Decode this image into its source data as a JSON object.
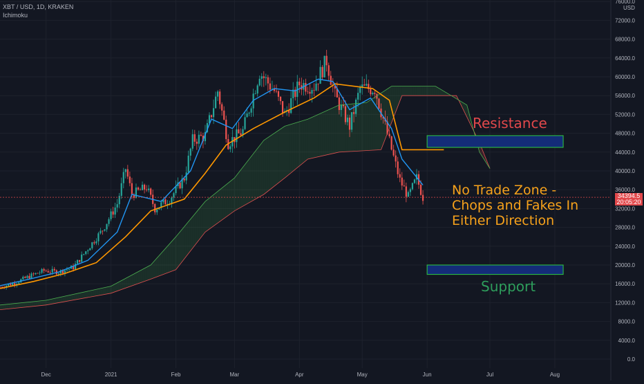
{
  "header": {
    "symbol_line": "XBT / USD, 1D, KRAKEN",
    "indicator": "Ichimoku"
  },
  "price_axis": {
    "currency": "USD",
    "ticks": [
      "76000.0",
      "72000.0",
      "68000.0",
      "64000.0",
      "60000.0",
      "56000.0",
      "52000.0",
      "48000.0",
      "44000.0",
      "40000.0",
      "36000.0",
      "32000.0",
      "28000.0",
      "24000.0",
      "20000.0",
      "16000.0",
      "12000.0",
      "8000.0",
      "4000.0",
      "0.0"
    ]
  },
  "current_price": {
    "price": "34394.5",
    "countdown": "20:05:20"
  },
  "time_axis": {
    "ticks": [
      "Dec",
      "2021",
      "Feb",
      "Mar",
      "Apr",
      "May",
      "Jun",
      "Jul",
      "Aug"
    ]
  },
  "annotations": {
    "resistance": "Resistance",
    "no_trade": "No Trade Zone -\nChops and Fakes In\nEither Direction",
    "support": "Support"
  },
  "colors": {
    "background": "#131722",
    "up": "#26a69a",
    "down": "#ef5350",
    "tenkan": "#2196f3",
    "kijun": "#ff9800",
    "span_a": "#4caf50",
    "span_b": "#e05050",
    "zone_fill": "#142c78",
    "zone_border": "#2ecc40"
  },
  "chart_data": {
    "type": "candlestick",
    "title": "XBT / USD, 1D, KRAKEN",
    "indicator": "Ichimoku",
    "y_range": [
      0,
      76000
    ],
    "x_range": [
      "2020-11-09",
      "2021-08-10"
    ],
    "x_ticks": [
      "Dec",
      "2021",
      "Feb",
      "Mar",
      "Apr",
      "May",
      "Jun",
      "Jul",
      "Aug"
    ],
    "tick_dates": [
      "2020-12-01",
      "2021-01-01",
      "2021-02-01",
      "2021-03-01",
      "2021-04-01",
      "2021-05-01",
      "2021-06-01",
      "2021-07-01",
      "2021-08-01"
    ],
    "close_series": [
      [
        "2020-11-09",
        15300
      ],
      [
        "2020-11-16",
        16200
      ],
      [
        "2020-11-23",
        17600
      ],
      [
        "2020-11-30",
        18800
      ],
      [
        "2020-12-07",
        18500
      ],
      [
        "2020-12-14",
        19500
      ],
      [
        "2020-12-21",
        23500
      ],
      [
        "2020-12-28",
        27500
      ],
      [
        "2021-01-04",
        33000
      ],
      [
        "2021-01-08",
        40500
      ],
      [
        "2021-01-11",
        35000
      ],
      [
        "2021-01-18",
        36500
      ],
      [
        "2021-01-22",
        32000
      ],
      [
        "2021-01-29",
        34000
      ],
      [
        "2021-02-05",
        38500
      ],
      [
        "2021-02-09",
        46500
      ],
      [
        "2021-02-15",
        47500
      ],
      [
        "2021-02-21",
        57000
      ],
      [
        "2021-02-26",
        46000
      ],
      [
        "2021-03-05",
        48500
      ],
      [
        "2021-03-13",
        61000
      ],
      [
        "2021-03-20",
        57000
      ],
      [
        "2021-03-25",
        52000
      ],
      [
        "2021-04-01",
        58500
      ],
      [
        "2021-04-08",
        58000
      ],
      [
        "2021-04-14",
        63500
      ],
      [
        "2021-04-18",
        56000
      ],
      [
        "2021-04-25",
        49500
      ],
      [
        "2021-04-30",
        57500
      ],
      [
        "2021-05-07",
        57500
      ],
      [
        "2021-05-12",
        49500
      ],
      [
        "2021-05-19",
        38000
      ],
      [
        "2021-05-23",
        34500
      ],
      [
        "2021-05-27",
        38500
      ],
      [
        "2021-05-30",
        34394.5
      ]
    ],
    "tenkan_series": [
      [
        "2020-11-09",
        15600
      ],
      [
        "2020-11-23",
        17000
      ],
      [
        "2020-12-07",
        18500
      ],
      [
        "2020-12-21",
        21000
      ],
      [
        "2021-01-04",
        27000
      ],
      [
        "2021-01-11",
        35000
      ],
      [
        "2021-01-25",
        33500
      ],
      [
        "2021-02-08",
        40000
      ],
      [
        "2021-02-18",
        51000
      ],
      [
        "2021-02-28",
        49000
      ],
      [
        "2021-03-10",
        55000
      ],
      [
        "2021-03-20",
        57500
      ],
      [
        "2021-03-30",
        57000
      ],
      [
        "2021-04-10",
        59500
      ],
      [
        "2021-04-17",
        59000
      ],
      [
        "2021-04-25",
        53000
      ],
      [
        "2021-05-05",
        55500
      ],
      [
        "2021-05-15",
        49000
      ],
      [
        "2021-05-20",
        42500
      ],
      [
        "2021-05-30",
        37000
      ]
    ],
    "kijun_series": [
      [
        "2020-11-09",
        15000
      ],
      [
        "2020-11-25",
        16500
      ],
      [
        "2020-12-10",
        18200
      ],
      [
        "2020-12-25",
        20500
      ],
      [
        "2021-01-08",
        26000
      ],
      [
        "2021-01-20",
        31500
      ],
      [
        "2021-02-05",
        34000
      ],
      [
        "2021-02-15",
        39500
      ],
      [
        "2021-02-25",
        45500
      ],
      [
        "2021-03-10",
        49000
      ],
      [
        "2021-03-25",
        52500
      ],
      [
        "2021-04-08",
        55500
      ],
      [
        "2021-04-18",
        58500
      ],
      [
        "2021-05-06",
        57500
      ],
      [
        "2021-05-14",
        55000
      ],
      [
        "2021-05-20",
        44500
      ],
      [
        "2021-06-09",
        44500
      ]
    ],
    "senkou_a_series": [
      [
        "2020-11-09",
        11500
      ],
      [
        "2020-12-01",
        12500
      ],
      [
        "2021-01-01",
        15500
      ],
      [
        "2021-01-20",
        20000
      ],
      [
        "2021-02-01",
        26000
      ],
      [
        "2021-02-15",
        33500
      ],
      [
        "2021-03-01",
        38500
      ],
      [
        "2021-03-15",
        46500
      ],
      [
        "2021-03-25",
        49500
      ],
      [
        "2021-04-05",
        51000
      ],
      [
        "2021-04-20",
        54000
      ],
      [
        "2021-05-03",
        54500
      ],
      [
        "2021-05-15",
        58000
      ],
      [
        "2021-06-05",
        58000
      ],
      [
        "2021-06-20",
        54000
      ],
      [
        "2021-06-26",
        44000
      ],
      [
        "2021-07-01",
        40500
      ]
    ],
    "senkou_b_series": [
      [
        "2020-11-09",
        10500
      ],
      [
        "2020-12-01",
        11500
      ],
      [
        "2021-01-01",
        14000
      ],
      [
        "2021-01-20",
        17000
      ],
      [
        "2021-02-01",
        19000
      ],
      [
        "2021-02-15",
        27000
      ],
      [
        "2021-03-01",
        31500
      ],
      [
        "2021-03-15",
        35000
      ],
      [
        "2021-03-25",
        38500
      ],
      [
        "2021-04-05",
        42500
      ],
      [
        "2021-04-20",
        44000
      ],
      [
        "2021-05-10",
        44500
      ],
      [
        "2021-05-20",
        56000
      ],
      [
        "2021-06-15",
        56000
      ],
      [
        "2021-06-26",
        46000
      ],
      [
        "2021-07-01",
        40500
      ]
    ],
    "zones": [
      {
        "label": "Resistance",
        "y": [
          45000,
          47500
        ],
        "x": [
          "2021-06-01",
          "2021-08-05"
        ]
      },
      {
        "label": "Support",
        "y": [
          18000,
          20000
        ],
        "x": [
          "2021-06-01",
          "2021-08-05"
        ]
      }
    ],
    "current_price": 34394.5
  }
}
